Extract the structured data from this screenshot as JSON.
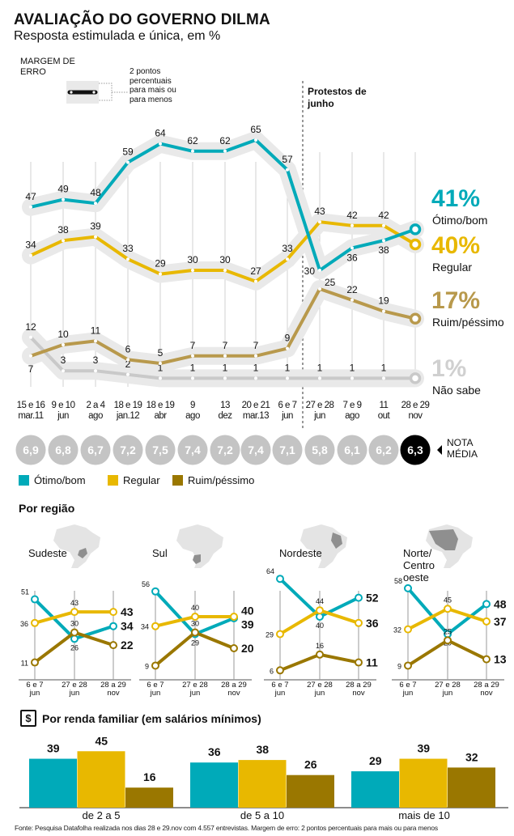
{
  "header": {
    "title": "AVALIAÇÃO DO GOVERNO DILMA",
    "subtitle": "Resposta estimulada e única, em %"
  },
  "margin": {
    "label": "MARGEM DE ERRO",
    "note": "2 pontos percentuais para mais ou para menos"
  },
  "annotation": {
    "protests": "Protestos de junho"
  },
  "colors": {
    "otimo": "#00aab9",
    "regular": "#e8b800",
    "ruim": "#9a7700",
    "ruim_main": "#b8994c",
    "nao_sabe": "#c9c9c9",
    "halo": "#e9e9e9"
  },
  "chart_data": [
    {
      "type": "line",
      "title": "AVALIAÇÃO DO GOVERNO DILMA",
      "subtitle": "Resposta estimulada e única, em %",
      "categories": [
        "15 e 16 mar.11",
        "9 e 10 jun",
        "2 a 4 ago",
        "18 e 19 jan.12",
        "18 e 19 abr",
        "9 ago",
        "13 dez",
        "20 e 21 mar.13",
        "6 e 7 jun",
        "27 e 28 jun",
        "7 e 9 ago",
        "11 out",
        "28 e 29 nov"
      ],
      "categories_top": [
        "15 e 16",
        "9 e 10",
        "2 a 4",
        "18 e 19",
        "18 e 19",
        "9",
        "13",
        "20 e 21",
        "6 e 7",
        "27 e 28",
        "7 e 9",
        "11",
        "28 e 29"
      ],
      "categories_bottom": [
        "mar.11",
        "jun",
        "ago",
        "jan.12",
        "abr",
        "ago",
        "dez",
        "mar.13",
        "jun",
        "jun",
        "ago",
        "out",
        "nov"
      ],
      "series": [
        {
          "name": "Ótimo/bom",
          "key": "otimo",
          "values": [
            47,
            49,
            48,
            59,
            64,
            62,
            62,
            65,
            57,
            30,
            36,
            38,
            41
          ],
          "final": "41%"
        },
        {
          "name": "Regular",
          "key": "regular",
          "values": [
            34,
            38,
            39,
            33,
            29,
            30,
            30,
            27,
            33,
            43,
            42,
            42,
            40
          ],
          "final": "40%"
        },
        {
          "name": "Ruim/péssimo",
          "key": "ruim",
          "values": [
            7,
            10,
            11,
            6,
            5,
            7,
            7,
            7,
            9,
            25,
            22,
            19,
            17
          ],
          "final": "17%"
        },
        {
          "name": "Não sabe",
          "key": "nao_sabe",
          "values": [
            12,
            3,
            3,
            2,
            1,
            1,
            1,
            1,
            1,
            1,
            1,
            1,
            1
          ],
          "final": "1%"
        }
      ],
      "nota_media": {
        "label": "NOTA MÉDIA",
        "values": [
          "6,9",
          "6,8",
          "6,7",
          "7,2",
          "7,5",
          "7,4",
          "7,2",
          "7,4",
          "7,1",
          "5,8",
          "6,1",
          "6,2",
          "6,3"
        ]
      },
      "annotation": "Protestos de junho",
      "grid": false
    },
    {
      "type": "line",
      "title": "Sudeste",
      "categories": [
        "6 e 7 jun",
        "27 e 28 jun",
        "28 a 29 nov"
      ],
      "series": [
        {
          "key": "otimo",
          "values": [
            51,
            26,
            34
          ]
        },
        {
          "key": "regular",
          "values": [
            36,
            43,
            43
          ]
        },
        {
          "key": "ruim",
          "values": [
            11,
            30,
            22
          ]
        }
      ]
    },
    {
      "type": "line",
      "title": "Sul",
      "categories": [
        "6 e 7 jun",
        "27 e 28 jun",
        "28 a 29 nov"
      ],
      "series": [
        {
          "key": "otimo",
          "values": [
            56,
            29,
            39
          ]
        },
        {
          "key": "regular",
          "values": [
            34,
            40,
            40
          ]
        },
        {
          "key": "ruim",
          "values": [
            9,
            30,
            20
          ]
        }
      ]
    },
    {
      "type": "line",
      "title": "Nordeste",
      "categories": [
        "6 e 7 jun",
        "27 e 28 jun",
        "28 a 29 nov"
      ],
      "series": [
        {
          "key": "otimo",
          "values": [
            64,
            40,
            52
          ]
        },
        {
          "key": "regular",
          "values": [
            29,
            44,
            36
          ]
        },
        {
          "key": "ruim",
          "values": [
            6,
            16,
            11
          ]
        }
      ]
    },
    {
      "type": "line",
      "title": "Norte/ Centro oeste",
      "categories": [
        "6 e 7 jun",
        "27 e 28 jun",
        "28 a 29 nov"
      ],
      "series": [
        {
          "key": "otimo",
          "values": [
            58,
            29,
            48
          ]
        },
        {
          "key": "regular",
          "values": [
            32,
            45,
            37
          ]
        },
        {
          "key": "ruim",
          "values": [
            9,
            25,
            13
          ]
        }
      ]
    },
    {
      "type": "bar",
      "title": "Por renda familiar (em salários mínimos)",
      "categories": [
        "de 2 a 5",
        "de 5 a 10",
        "mais de 10"
      ],
      "series": [
        {
          "name": "Ótimo/bom",
          "key": "otimo",
          "values": [
            39,
            36,
            29
          ]
        },
        {
          "name": "Regular",
          "key": "regular",
          "values": [
            45,
            38,
            39
          ]
        },
        {
          "name": "Ruim/péssimo",
          "key": "ruim",
          "values": [
            16,
            26,
            32
          ]
        }
      ]
    }
  ],
  "legend": [
    {
      "label": "Ótimo/bom",
      "key": "otimo"
    },
    {
      "label": "Regular",
      "key": "regular"
    },
    {
      "label": "Ruim/péssimo",
      "key": "ruim"
    }
  ],
  "regions": {
    "title": "Por região",
    "names": [
      "Sudeste",
      "Sul",
      "Nordeste",
      "Norte/ Centro oeste"
    ],
    "date_top": [
      "6 e 7",
      "27 e 28",
      "28 a 29"
    ],
    "date_bottom": [
      "jun",
      "jun",
      "nov"
    ]
  },
  "renda": {
    "title": "Por renda familiar (em salários mínimos)",
    "icon": "$"
  },
  "source": "Fonte: Pesquisa Datafolha realizada nos dias 28 e 29.nov com 4.557 entrevistas. Margem de erro: 2 pontos percentuais para mais ou para menos"
}
